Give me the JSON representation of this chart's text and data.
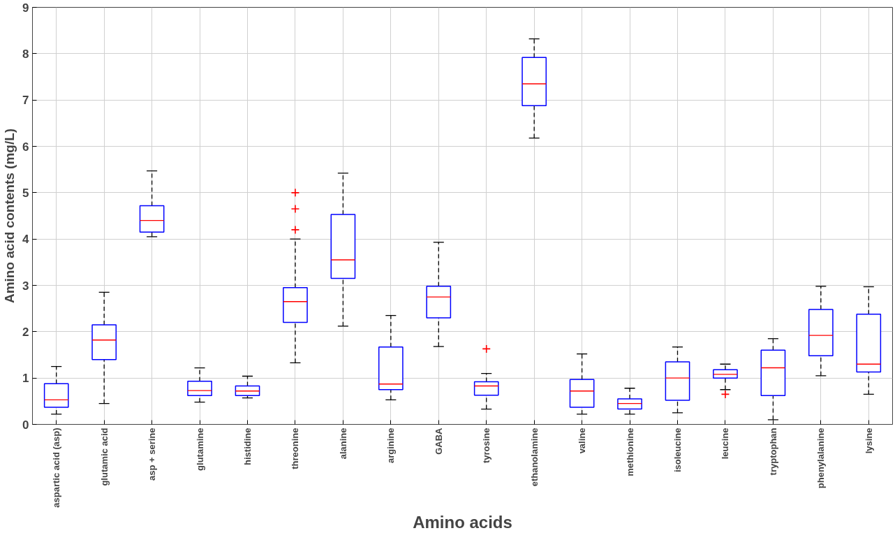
{
  "chart_data": {
    "type": "box",
    "xlabel": "Amino acids",
    "ylabel": "Amino acid contents (mg/L)",
    "categories": [
      "aspartic acid (asp)",
      "glutamic acid",
      "asp + serine",
      "glutamine",
      "histidine",
      "threonine",
      "alanine",
      "arginine",
      "GABA",
      "tyrosine",
      "ethanolamine",
      "valine",
      "methionine",
      "isoleucine",
      "leucine",
      "tryptophan",
      "phenylalanine",
      "lysine"
    ],
    "ylim": [
      0,
      9
    ],
    "yticks": [
      0,
      1,
      2,
      3,
      4,
      5,
      6,
      7,
      8,
      9
    ],
    "grid": true,
    "series": [
      {
        "color": "#0000ff",
        "boxes": [
          {
            "low": 0.22,
            "q1": 0.37,
            "median": 0.53,
            "q3": 0.88,
            "high": 1.25
          },
          {
            "low": 0.45,
            "q1": 1.4,
            "median": 1.82,
            "q3": 2.15,
            "high": 2.85
          },
          {
            "low": 4.05,
            "q1": 4.15,
            "median": 4.4,
            "q3": 4.72,
            "high": 5.47
          },
          {
            "low": 0.48,
            "q1": 0.62,
            "median": 0.73,
            "q3": 0.93,
            "high": 1.22
          },
          {
            "low": 0.57,
            "q1": 0.62,
            "median": 0.72,
            "q3": 0.83,
            "high": 1.04
          },
          {
            "low": 1.33,
            "q1": 2.2,
            "median": 2.65,
            "q3": 2.95,
            "high": 4.0,
            "outliers": [
              4.2,
              4.65,
              5.0
            ]
          },
          {
            "low": 2.12,
            "q1": 3.15,
            "median": 3.55,
            "q3": 4.53,
            "high": 5.42
          },
          {
            "low": 0.53,
            "q1": 0.75,
            "median": 0.87,
            "q3": 1.67,
            "high": 2.35
          },
          {
            "low": 1.68,
            "q1": 2.3,
            "median": 2.75,
            "q3": 2.98,
            "high": 3.93
          },
          {
            "low": 0.33,
            "q1": 0.63,
            "median": 0.83,
            "q3": 0.92,
            "high": 1.1,
            "outliers": [
              1.63
            ]
          },
          {
            "low": 6.18,
            "q1": 6.88,
            "median": 7.35,
            "q3": 7.92,
            "high": 8.32
          },
          {
            "low": 0.22,
            "q1": 0.37,
            "median": 0.72,
            "q3": 0.97,
            "high": 1.52
          },
          {
            "low": 0.22,
            "q1": 0.33,
            "median": 0.45,
            "q3": 0.55,
            "high": 0.78
          },
          {
            "low": 0.25,
            "q1": 0.52,
            "median": 1.0,
            "q3": 1.35,
            "high": 1.67
          },
          {
            "low": 0.75,
            "q1": 1.0,
            "median": 1.08,
            "q3": 1.18,
            "high": 1.3,
            "outliers": [
              0.65
            ]
          },
          {
            "low": 0.1,
            "q1": 0.62,
            "median": 1.22,
            "q3": 1.6,
            "high": 1.85
          },
          {
            "low": 1.05,
            "q1": 1.48,
            "median": 1.92,
            "q3": 2.48,
            "high": 2.98
          },
          {
            "low": 0.65,
            "q1": 1.13,
            "median": 1.3,
            "q3": 2.38,
            "high": 2.97
          }
        ]
      }
    ]
  }
}
